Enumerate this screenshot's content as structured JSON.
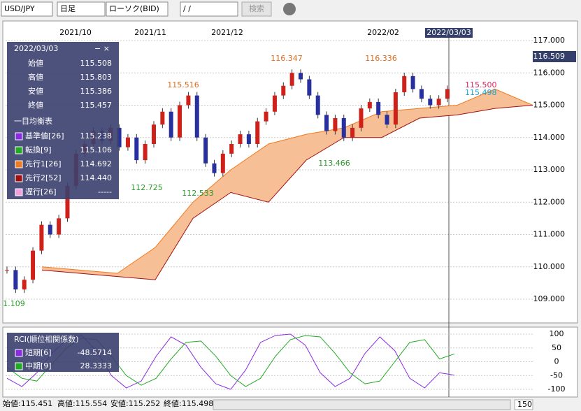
{
  "toolbar": {
    "symbol": "USD/JPY",
    "period": "日足",
    "price_type": "ローソク(BID)",
    "date": "/   /",
    "search": "検索"
  },
  "date_labels": [
    "2021/10",
    "2021/11",
    "2021/12",
    "2022/02"
  ],
  "cursor_date": "2022/03/03",
  "price_axis": [
    "117.000",
    "116.000",
    "115.000",
    "114.000",
    "113.000",
    "112.000",
    "111.000",
    "110.000",
    "109.000"
  ],
  "current_price": "116.509",
  "annotations": [
    {
      "text": "116.347",
      "color": "#e06a1b"
    },
    {
      "text": "116.336",
      "color": "#e06a1b"
    },
    {
      "text": "115.516",
      "color": "#e06a1b"
    },
    {
      "text": "113.466",
      "color": "#2a9a2a"
    },
    {
      "text": "112.725",
      "color": "#2a9a2a"
    },
    {
      "text": "112.533",
      "color": "#2a9a2a"
    },
    {
      "text": "1.109",
      "color": "#2a9a2a"
    },
    {
      "text": "115.500",
      "color": "#e0245e"
    },
    {
      "text": "115.498",
      "color": "#1aa0c8"
    }
  ],
  "info_panel": {
    "date": "2022/03/03",
    "rows": [
      {
        "label": "始値",
        "value": "115.508"
      },
      {
        "label": "高値",
        "value": "115.803"
      },
      {
        "label": "安値",
        "value": "115.386"
      },
      {
        "label": "終値",
        "value": "115.457"
      }
    ],
    "section": "一目均衡表",
    "ichimoku": [
      {
        "label": "基準値[26]",
        "value": "115.238",
        "color": "#8a2be2"
      },
      {
        "label": "転換[9]",
        "value": "115.106",
        "color": "#22aa22"
      },
      {
        "label": "先行1[26]",
        "value": "114.692",
        "color": "#f07a20"
      },
      {
        "label": "先行2[52]",
        "value": "114.440",
        "color": "#a01010"
      },
      {
        "label": "遅行[26]",
        "value": "-----",
        "color": "#f0a0e0"
      }
    ]
  },
  "price_chart": {
    "closes": [
      109.9,
      109.3,
      109.6,
      110.5,
      111.3,
      111.0,
      111.5,
      112.5,
      113.5,
      113.8,
      114.2,
      113.9,
      114.3,
      113.7,
      114.0,
      113.3,
      113.8,
      114.4,
      114.8,
      114.0,
      115.0,
      115.3,
      114.0,
      113.2,
      112.9,
      113.5,
      113.8,
      114.1,
      113.8,
      114.5,
      114.8,
      115.3,
      115.6,
      116.0,
      115.8,
      115.3,
      114.7,
      114.2,
      114.6,
      114.0,
      114.3,
      114.9,
      115.1,
      114.7,
      114.4,
      115.4,
      115.9,
      115.5,
      115.2,
      115.0,
      115.2,
      115.5
    ],
    "cloud_top": [
      110.0,
      109.9,
      109.8,
      110.6,
      112.0,
      113.0,
      113.8,
      114.1,
      114.3,
      114.8,
      114.9,
      115.0,
      115.5,
      115.0
    ],
    "cloud_bottom": [
      109.9,
      109.8,
      109.7,
      109.6,
      111.5,
      112.3,
      112.0,
      113.3,
      114.0,
      114.0,
      114.6,
      114.7,
      114.9,
      115.0
    ]
  },
  "rci_panel": {
    "title": "RCI(順位相関係数)",
    "rows": [
      {
        "label": "短期[6]",
        "value": "-48.5714",
        "color": "#8a2be2"
      },
      {
        "label": "中期[9]",
        "value": "28.3333",
        "color": "#22aa22"
      }
    ],
    "axis": [
      {
        "value": 100,
        "label": "100"
      },
      {
        "value": 50,
        "label": "50"
      },
      {
        "value": 0,
        "label": "0"
      },
      {
        "value": -50,
        "label": "-50"
      },
      {
        "value": -100,
        "label": "-100"
      }
    ],
    "short": [
      -60,
      -90,
      -40,
      30,
      80,
      95,
      40,
      -50,
      -95,
      -70,
      20,
      90,
      60,
      -20,
      -80,
      -100,
      -30,
      70,
      95,
      100,
      60,
      -40,
      -90,
      -60,
      30,
      90,
      40,
      -60,
      -95,
      -40,
      -48.5714
    ],
    "medium": [
      -20,
      -60,
      -70,
      -10,
      50,
      85,
      80,
      20,
      -50,
      -85,
      -60,
      10,
      70,
      75,
      20,
      -50,
      -90,
      -60,
      20,
      80,
      95,
      90,
      30,
      -40,
      -80,
      -70,
      0,
      70,
      80,
      10,
      28.3333
    ]
  },
  "status": {
    "open": "始値:115.451",
    "high": "高値:115.554",
    "low": "安値:115.252",
    "close": "終値:115.498",
    "zoom": "150"
  }
}
